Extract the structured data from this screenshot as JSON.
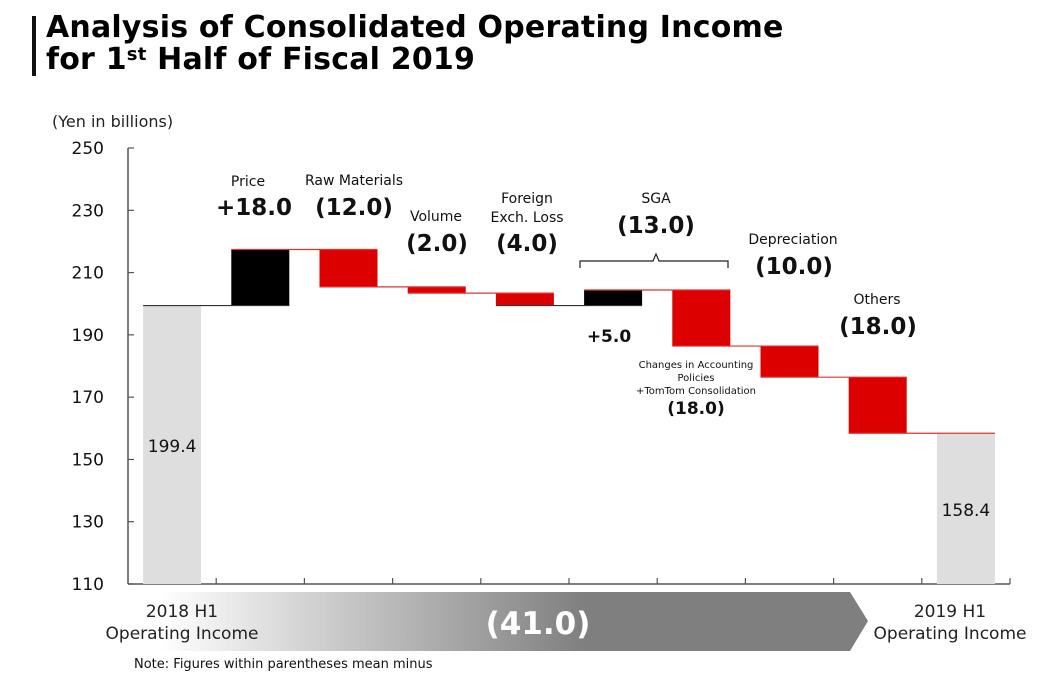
{
  "header": {
    "title_line1": "Analysis of Consolidated Operating Income",
    "title_line2_pre": "for 1",
    "title_line2_sup": "st",
    "title_line2_post": " Half of Fiscal 2019"
  },
  "note": "Note: Figures within parentheses mean minus",
  "colors": {
    "increase": "#000000",
    "decrease": "#dd0000",
    "total": "#dedede",
    "connector": "#dd3333",
    "banner_start": "#ffffff",
    "banner_end": "#7f7f7f"
  },
  "banner": {
    "label": "(41.0)"
  },
  "chart_data": {
    "type": "waterfall",
    "title": "Analysis of Consolidated Operating Income for 1st Half of Fiscal 2019",
    "ylabel": "(Yen in billions)",
    "ylim": [
      110,
      250
    ],
    "yticks": [
      250,
      230,
      210,
      190,
      170,
      150,
      130,
      110
    ],
    "grid": false,
    "steps": [
      {
        "name": "2018 H1 Operating Income",
        "kind": "total",
        "value": 199.4,
        "label": "199.4"
      },
      {
        "name": "Price",
        "kind": "delta",
        "value": 18.0,
        "label": "+18.0",
        "caption": "Price"
      },
      {
        "name": "Raw Materials",
        "kind": "delta",
        "value": -12.0,
        "label": "(12.0)",
        "caption": "Raw Materials"
      },
      {
        "name": "Volume",
        "kind": "delta",
        "value": -2.0,
        "label": "(2.0)",
        "caption": "Volume"
      },
      {
        "name": "Foreign Exch. Loss",
        "kind": "delta",
        "value": -4.0,
        "label": "(4.0)",
        "caption": "Foreign Exch. Loss"
      },
      {
        "name": "SGA (positive)",
        "kind": "delta",
        "value": 5.0,
        "label": "+5.0"
      },
      {
        "name": "Changes in Accounting Policies +TomTom Consolidation",
        "kind": "delta",
        "value": -18.0,
        "label": "(18.0)",
        "caption_lines": [
          "Changes in Accounting",
          "Policies",
          "+TomTom Consolidation"
        ]
      },
      {
        "name": "Depreciation",
        "kind": "delta",
        "value": -10.0,
        "label": "(10.0)",
        "caption": "Depreciation"
      },
      {
        "name": "Others",
        "kind": "delta",
        "value": -18.0,
        "label": "(18.0)",
        "caption": "Others"
      },
      {
        "name": "2019 H1 Operating Income",
        "kind": "total",
        "value": 158.4,
        "label": "158.4"
      }
    ],
    "group_annotation": {
      "caption": "SGA",
      "label": "(13.0)",
      "covers": [
        "SGA (positive)",
        "Changes in Accounting Policies +TomTom Consolidation"
      ]
    },
    "total_change": -41.0,
    "x_labels": {
      "start": [
        "2018 H1",
        "Operating Income"
      ],
      "end": [
        "2019 H1",
        "Operating Income"
      ]
    }
  }
}
